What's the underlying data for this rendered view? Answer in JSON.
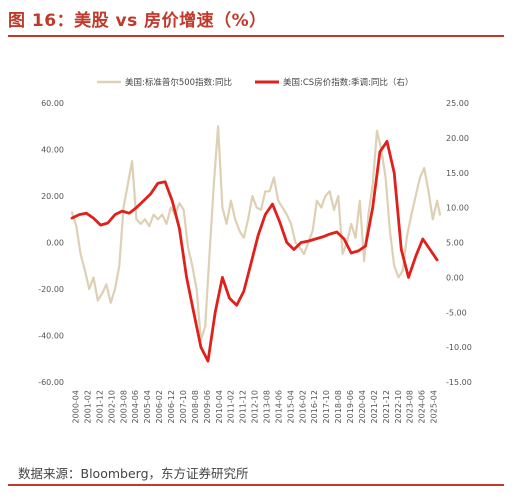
{
  "header": {
    "title": "图 16：美股 vs 房价增速（%）"
  },
  "footer": {
    "source": "数据来源：Bloomberg，东方证券研究所"
  },
  "colors": {
    "accent": "#c0392b",
    "sp500": "#ddd0b4",
    "cs": "#e0201b"
  },
  "chart_data": {
    "type": "line",
    "x_tick_labels": [
      "2000-04",
      "2001-02",
      "2001-12",
      "2002-10",
      "2003-08",
      "2004-06",
      "2005-04",
      "2006-02",
      "2006-12",
      "2007-10",
      "2008-08",
      "2009-06",
      "2010-04",
      "2011-02",
      "2011-12",
      "2012-10",
      "2013-08",
      "2014-06",
      "2015-04",
      "2016-02",
      "2016-12",
      "2017-10",
      "2018-08",
      "2019-06",
      "2020-04",
      "2021-02",
      "2021-12",
      "2022-10",
      "2023-08",
      "2024-06",
      "2025-04"
    ],
    "y_left": {
      "ticks": [
        "60.00",
        "40.00",
        "20.00",
        "0.00",
        "-20.00",
        "-40.00",
        "-60.00"
      ],
      "range": [
        -60,
        60
      ]
    },
    "y_right": {
      "ticks": [
        "25.00",
        "20.00",
        "15.00",
        "10.00",
        "5.00",
        "0.00",
        "-5.00",
        "-10.00",
        "-15.00"
      ],
      "range": [
        -15,
        25
      ]
    },
    "legend": {
      "position": "top"
    },
    "series": [
      {
        "name": "美国:标准普尔500指数:同比",
        "axis": "left",
        "color": "#ddd0b4",
        "x": [
          2000.0,
          2000.3,
          2000.6,
          2000.9,
          2001.2,
          2001.5,
          2001.8,
          2002.1,
          2002.4,
          2002.7,
          2003.0,
          2003.3,
          2003.6,
          2003.9,
          2004.2,
          2004.5,
          2004.8,
          2005.1,
          2005.4,
          2005.7,
          2006.0,
          2006.3,
          2006.6,
          2006.9,
          2007.2,
          2007.5,
          2007.8,
          2008.1,
          2008.4,
          2008.7,
          2009.0,
          2009.3,
          2009.6,
          2009.9,
          2010.2,
          2010.5,
          2010.8,
          2011.1,
          2011.4,
          2011.7,
          2012.0,
          2012.3,
          2012.6,
          2012.9,
          2013.2,
          2013.5,
          2013.8,
          2014.1,
          2014.4,
          2014.7,
          2015.0,
          2015.3,
          2015.6,
          2015.9,
          2016.2,
          2016.5,
          2016.8,
          2017.1,
          2017.4,
          2017.7,
          2018.0,
          2018.3,
          2018.6,
          2018.9,
          2019.2,
          2019.5,
          2019.8,
          2020.1,
          2020.4,
          2020.7,
          2021.0,
          2021.3,
          2021.6,
          2021.9,
          2022.2,
          2022.5,
          2022.8,
          2023.1,
          2023.4,
          2023.7,
          2024.0,
          2024.3,
          2024.6,
          2024.9,
          2025.2,
          2025.5,
          2025.7
        ],
        "y": [
          13,
          7,
          -5,
          -12,
          -20,
          -15,
          -25,
          -22,
          -18,
          -26,
          -20,
          -10,
          15,
          25,
          35,
          10,
          8,
          10,
          7,
          12,
          10,
          12,
          8,
          15,
          12,
          17,
          14,
          -2,
          -10,
          -20,
          -42,
          -36,
          -5,
          25,
          50,
          15,
          8,
          18,
          10,
          5,
          2,
          10,
          20,
          15,
          14,
          22,
          22,
          28,
          18,
          15,
          12,
          8,
          0,
          -2,
          -5,
          0,
          5,
          18,
          15,
          20,
          22,
          14,
          20,
          -5,
          0,
          8,
          2,
          18,
          -8,
          12,
          25,
          48,
          40,
          28,
          5,
          -10,
          -15,
          -12,
          3,
          12,
          20,
          28,
          32,
          22,
          10,
          18,
          12
        ]
      },
      {
        "name": "美国:CS房价指数:季调:同比（右）",
        "axis": "right",
        "color": "#e0201b",
        "x": [
          2000.0,
          2000.5,
          2001.0,
          2001.5,
          2002.0,
          2002.5,
          2003.0,
          2003.5,
          2004.0,
          2004.5,
          2005.0,
          2005.5,
          2006.0,
          2006.5,
          2007.0,
          2007.5,
          2008.0,
          2008.5,
          2009.0,
          2009.5,
          2010.0,
          2010.5,
          2011.0,
          2011.5,
          2012.0,
          2012.5,
          2013.0,
          2013.5,
          2014.0,
          2014.5,
          2015.0,
          2015.5,
          2016.0,
          2016.5,
          2017.0,
          2017.5,
          2018.0,
          2018.5,
          2019.0,
          2019.5,
          2020.0,
          2020.5,
          2021.0,
          2021.5,
          2022.0,
          2022.5,
          2023.0,
          2023.5,
          2024.0,
          2024.5,
          2025.0,
          2025.5
        ],
        "y": [
          8.5,
          9,
          9.2,
          8.5,
          7.5,
          7.8,
          9,
          9.5,
          9.2,
          10,
          11,
          12,
          13.5,
          13.7,
          11,
          7,
          0,
          -5,
          -10,
          -12,
          -5,
          0,
          -3,
          -4,
          -2,
          2,
          6,
          9,
          10.5,
          8,
          5,
          4,
          5,
          5.2,
          5.5,
          5.8,
          6.2,
          6.5,
          5.5,
          3.5,
          3.8,
          4.5,
          10,
          18,
          19.5,
          15,
          4,
          0,
          3,
          5.5,
          4,
          2.5
        ]
      }
    ]
  }
}
